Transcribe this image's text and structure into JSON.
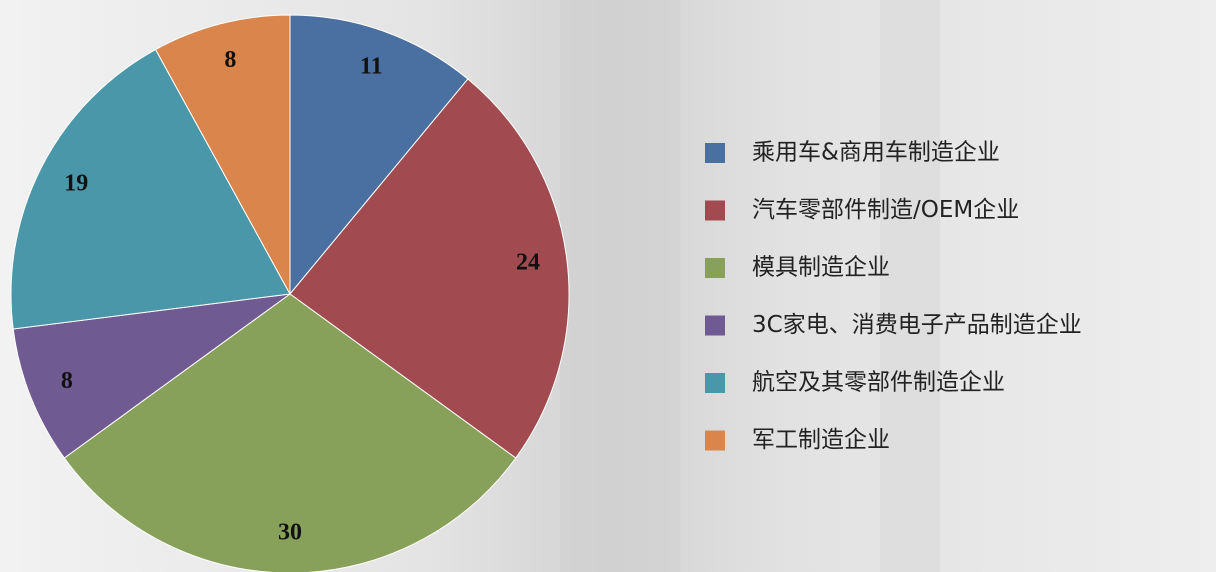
{
  "chart_data": {
    "type": "pie",
    "categories": [
      "乘用车&商用车制造企业",
      "汽车零部件制造/OEM企业",
      "模具制造企业",
      "3C家电、消费电子产品制造企业",
      "航空及其零部件制造企业",
      "军工制造企业"
    ],
    "values": [
      11,
      24,
      30,
      8,
      19,
      8
    ],
    "colors": [
      "#4a70a2",
      "#a14b50",
      "#88a15a",
      "#705a92",
      "#4a97a9",
      "#d9854b"
    ],
    "legend": "right"
  }
}
